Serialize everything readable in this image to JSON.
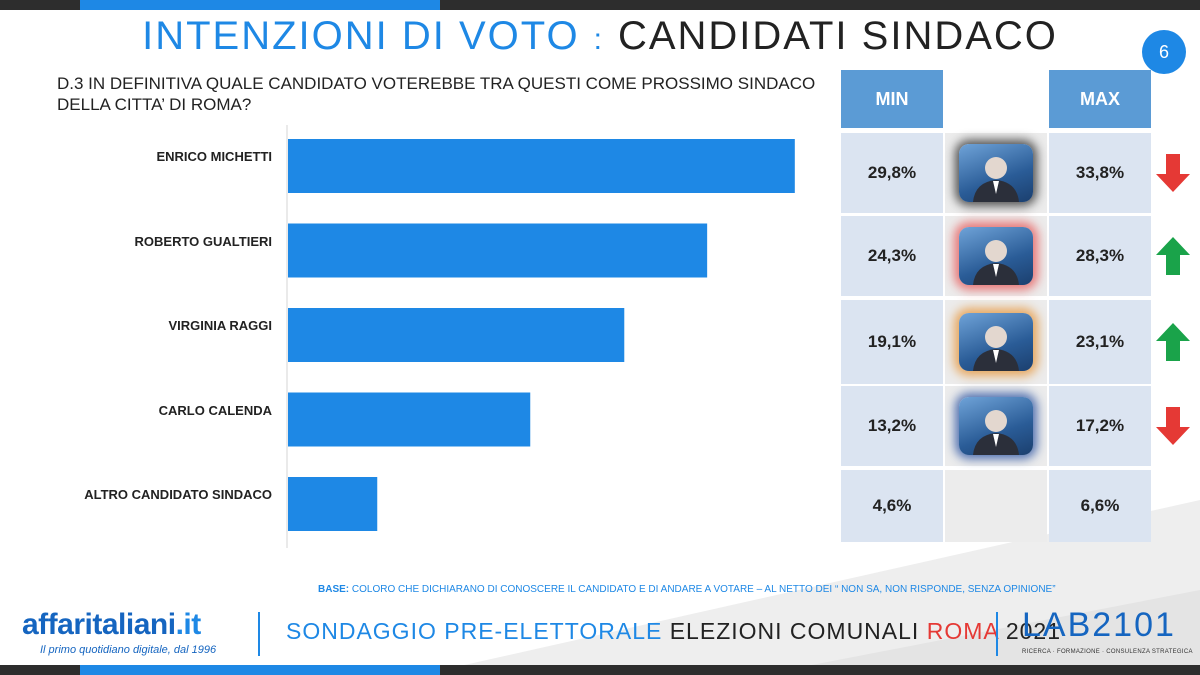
{
  "header": {
    "title_part1": "INTENZIONI DI VOTO",
    "title_separator": ":",
    "title_part2": "CANDIDATI SINDACO",
    "page_number": "6"
  },
  "question": "D.3 IN DEFINITIVA QUALE CANDIDATO VOTEREBBE TRA QUESTI COME PROSSIMO SINDACO DELLA CITTA’ DI ROMA?",
  "chart_data": {
    "type": "bar",
    "orientation": "horizontal",
    "categories": [
      "ENRICO MICHETTI",
      "ROBERTO GUALTIERI",
      "VIRGINIA RAGGI",
      "CARLO CALENDA",
      "ALTRO CANDIDATO SINDACO"
    ],
    "values": [
      31.8,
      26.3,
      21.1,
      15.2,
      5.6
    ],
    "bar_color": "#1e88e5",
    "xlim": [
      0,
      32
    ]
  },
  "table": {
    "min_header": "MIN",
    "max_header": "MAX",
    "rows": [
      {
        "min": "29,8%",
        "max": "33,8%",
        "photo": "michetti-photo",
        "trend": "down"
      },
      {
        "min": "24,3%",
        "max": "28,3%",
        "photo": "gualtieri-photo",
        "trend": "up"
      },
      {
        "min": "19,1%",
        "max": "23,1%",
        "photo": "raggi-photo",
        "trend": "up"
      },
      {
        "min": "13,2%",
        "max": "17,2%",
        "photo": "calenda-photo",
        "trend": "down"
      },
      {
        "min": "4,6%",
        "max": "6,6%",
        "photo": "",
        "trend": ""
      }
    ]
  },
  "colors": {
    "accent": "#1e88e5",
    "header_cell": "#5b9bd5",
    "up_arrow": "#1aa34a",
    "down_arrow": "#e53935"
  },
  "base_note": {
    "label": "BASE:",
    "text": "COLORO CHE DICHIARANO DI CONOSCERE IL CANDIDATO E DI ANDARE A VOTARE – AL NETTO DEI “ NON SA, NON RISPONDE, SENZA OPINIONE”"
  },
  "footer": {
    "brand_name": "affaritaliani",
    "brand_suffix": ".it",
    "brand_tagline": "Il primo quotidiano digitale, dal 1996",
    "survey_part1": "SONDAGGIO PRE-ELETTORALE",
    "survey_part2": "ELEZIONI COMUNALI",
    "survey_part3": "ROMA",
    "survey_part4": "2021",
    "lab_logo": "LAB2101",
    "lab_tagline": "RICERCA · FORMAZIONE · CONSULENZA STRATEGICA"
  }
}
